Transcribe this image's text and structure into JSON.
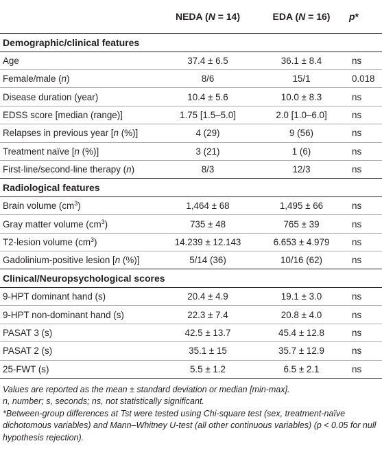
{
  "table": {
    "headers": {
      "col1": "",
      "neda": "NEDA (N = 14)",
      "eda": "EDA (N = 16)",
      "p": "p*"
    },
    "sections": [
      {
        "title": "Demographic/clinical features",
        "rows": [
          {
            "label": "Age",
            "neda": "37.4 ± 6.5",
            "eda": "36.1 ± 8.4",
            "p": "ns"
          },
          {
            "label": "Female/male (n)",
            "neda": "8/6",
            "eda": "15/1",
            "p": "0.018"
          },
          {
            "label": "Disease duration (year)",
            "neda": "10.4 ± 5.6",
            "eda": "10.0 ± 8.3",
            "p": "ns"
          },
          {
            "label": "EDSS score [median (range)]",
            "neda": "1.75 [1.5–5.0]",
            "eda": "2.0 [1.0–6.0]",
            "p": "ns"
          },
          {
            "label": "Relapses in previous year [n (%)]",
            "neda": "4 (29)",
            "eda": "9 (56)",
            "p": "ns"
          },
          {
            "label": "Treatment naïve [n (%)]",
            "neda": "3 (21)",
            "eda": "1 (6)",
            "p": "ns"
          },
          {
            "label": "First-line/second-line therapy (n)",
            "neda": "8/3",
            "eda": "12/3",
            "p": "ns"
          }
        ]
      },
      {
        "title": "Radiological features",
        "rows": [
          {
            "label": "Brain volume (cm3)",
            "neda": "1,464 ± 68",
            "eda": "1,495 ± 66",
            "p": "ns"
          },
          {
            "label": "Gray matter volume (cm3)",
            "neda": "735 ± 48",
            "eda": "765 ± 39",
            "p": "ns"
          },
          {
            "label": "T2-lesion volume (cm3)",
            "neda": "14.239 ± 12.143",
            "eda": "6.653 ± 4.979",
            "p": "ns"
          },
          {
            "label": "Gadolinium-positive lesion [n (%)]",
            "neda": "5/14 (36)",
            "eda": "10/16 (62)",
            "p": "ns"
          }
        ]
      },
      {
        "title": "Clinical/Neuropsychological scores",
        "rows": [
          {
            "label": "9-HPT dominant hand (s)",
            "neda": "20.4 ± 4.9",
            "eda": "19.1 ± 3.0",
            "p": "ns"
          },
          {
            "label": "9-HPT non-dominant hand (s)",
            "neda": "22.3 ± 7.4",
            "eda": "20.8 ± 4.0",
            "p": "ns"
          },
          {
            "label": "PASAT 3 (s)",
            "neda": "42.5 ± 13.7",
            "eda": "45.4 ± 12.8",
            "p": "ns"
          },
          {
            "label": "PASAT 2 (s)",
            "neda": "35.1 ± 15",
            "eda": "35.7 ± 12.9",
            "p": "ns"
          },
          {
            "label": "25-FWT (s)",
            "neda": "5.5 ± 1.2",
            "eda": "6.5 ± 2.1",
            "p": "ns"
          }
        ]
      }
    ]
  },
  "footnotes": {
    "line1": "Values are reported as the mean ± standard deviation or median [min-max].",
    "line2": "n, number; s, seconds; ns, not statistically significant.",
    "line3": "*Between-group differences at Tst were tested using Chi-square test (sex, treatment-naïve dichotomous variables) and Mann–Whitney U-test (all other continuous variables) (p < 0.05 for null hypothesis rejection)."
  }
}
